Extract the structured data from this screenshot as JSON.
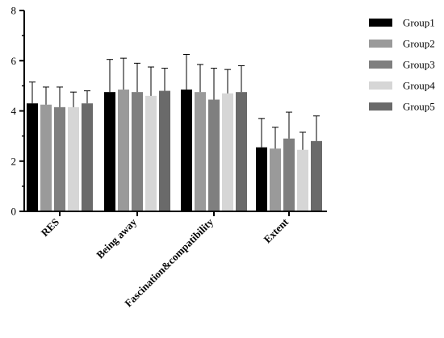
{
  "chart_data": {
    "type": "bar",
    "categories": [
      "RES",
      "Being away",
      "Fascination&compatibility",
      "Extent"
    ],
    "series": [
      {
        "name": "Group1",
        "color": "#000000",
        "values": [
          4.3,
          4.75,
          4.85,
          2.55
        ],
        "errors": [
          0.85,
          1.3,
          1.4,
          1.15
        ]
      },
      {
        "name": "Group2",
        "color": "#9a9a9a",
        "values": [
          4.25,
          4.85,
          4.75,
          2.5
        ],
        "errors": [
          0.7,
          1.25,
          1.1,
          0.85
        ]
      },
      {
        "name": "Group3",
        "color": "#7f7f7f",
        "values": [
          4.15,
          4.75,
          4.45,
          2.9
        ],
        "errors": [
          0.8,
          1.15,
          1.25,
          1.05
        ]
      },
      {
        "name": "Group4",
        "color": "#d6d6d6",
        "values": [
          4.15,
          4.6,
          4.7,
          2.45
        ],
        "errors": [
          0.6,
          1.15,
          0.95,
          0.7
        ]
      },
      {
        "name": "Group5",
        "color": "#6a6a6a",
        "values": [
          4.3,
          4.8,
          4.75,
          2.8
        ],
        "errors": [
          0.5,
          0.9,
          1.05,
          1.0
        ]
      }
    ],
    "yticks": [
      0,
      2,
      4,
      6,
      8
    ],
    "ylim": [
      0,
      8
    ],
    "title": "",
    "xlabel": "",
    "ylabel": "",
    "grid": false,
    "legend": "right",
    "error_bars": "upper only"
  }
}
